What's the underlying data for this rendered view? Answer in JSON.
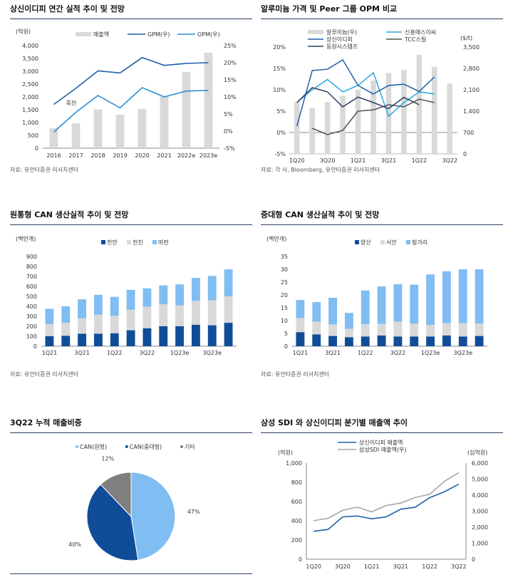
{
  "chart_data": [
    {
      "type": "bar",
      "title": "상신이디피 연간 실적 추이 및 전망",
      "source": "자료: 유안타증권 리서치센터",
      "left_unit": "(억원)",
      "categories": [
        "2016",
        "2017",
        "2018",
        "2019",
        "2020",
        "2021",
        "2022e",
        "2023e"
      ],
      "left_ticks": [
        "0",
        "500",
        "1,000",
        "1,500",
        "2,000",
        "2,500",
        "3,000",
        "3,500",
        "4,000"
      ],
      "right_ticks": [
        "25%",
        "20%",
        "15%",
        "10%",
        "5%",
        "0%",
        "-5%"
      ],
      "ylim_left": [
        0,
        4000
      ],
      "ylim_right": [
        -5,
        25
      ],
      "series": [
        {
          "name": "매출액",
          "kind": "bar",
          "axis": "left",
          "color": "#d9d9d9",
          "values": [
            780,
            970,
            1510,
            1310,
            1530,
            2020,
            2970,
            3720
          ]
        },
        {
          "name": "GPM(우)",
          "kind": "line",
          "axis": "right",
          "color": "#1f5fa8",
          "values": [
            7.8,
            12.5,
            17.6,
            17.0,
            21.5,
            19.2,
            19.8,
            20.0
          ]
        },
        {
          "name": "OPM(우)",
          "kind": "line",
          "axis": "right",
          "color": "#2b8fd6",
          "values": [
            -0.3,
            5.5,
            10.4,
            6.8,
            12.7,
            10.0,
            11.7,
            11.9
          ]
        }
      ],
      "annotation": "흑전"
    },
    {
      "type": "bar",
      "title": "알루미늄 가격 및 Peer 그룹 OPM 비교",
      "source": "자료: 각 사, Bloomberg, 유안타증권 리서치센터",
      "right_unit": "($/t)",
      "categories": [
        "1Q20",
        "2Q20",
        "3Q20",
        "4Q20",
        "1Q21",
        "2Q21",
        "3Q21",
        "4Q21",
        "1Q22",
        "2Q22",
        "3Q22"
      ],
      "x_tick_labels": [
        "1Q20",
        "3Q20",
        "1Q21",
        "3Q21",
        "1Q22",
        "3Q22"
      ],
      "left_ticks": [
        "20%",
        "15%",
        "10%",
        "5%",
        "0%",
        "-5%"
      ],
      "right_ticks": [
        "3,500",
        "2,800",
        "2,100",
        "1,400",
        "700",
        "0"
      ],
      "ylim_left": [
        -5,
        20
      ],
      "ylim_right": [
        0,
        3500
      ],
      "series": [
        {
          "name": "알루미늄(우)",
          "kind": "bar",
          "axis": "right",
          "color": "#d9d9d9",
          "values": [
            1700,
            1500,
            1700,
            1900,
            2100,
            2400,
            2650,
            2750,
            3250,
            2850,
            2300
          ]
        },
        {
          "name": "신흥에스이씨",
          "kind": "line",
          "axis": "left",
          "color": "#2aa9df",
          "values": [
            7,
            10,
            12.4,
            9.5,
            11,
            14,
            3.8,
            7,
            9.5,
            9,
            null
          ]
        },
        {
          "name": "상신이디피",
          "kind": "line",
          "axis": "left",
          "color": "#1f5fa8",
          "values": [
            1.5,
            14.5,
            14.8,
            17,
            11,
            9,
            11,
            11.3,
            9.6,
            13,
            null
          ]
        },
        {
          "name": "TCC스틸",
          "kind": "line",
          "axis": "left",
          "color": "#555555",
          "values": [
            null,
            1,
            -0.5,
            0.5,
            5,
            5.3,
            6.5,
            6,
            7.8,
            7,
            null
          ]
        },
        {
          "name": "동원시스템즈",
          "kind": "line",
          "axis": "left",
          "color": "#2b3f66",
          "values": [
            7,
            10.5,
            9.5,
            6,
            8.3,
            7,
            5.6,
            8.2,
            6.5,
            null,
            null
          ]
        }
      ]
    },
    {
      "type": "bar",
      "title": "원통형 CAN 생산실적 추이 및 전망",
      "source": "자료: 유안타증권 리서치센터",
      "left_unit": "(백만개)",
      "categories": [
        "1Q21",
        "2Q21",
        "3Q21",
        "4Q21",
        "1Q22",
        "2Q22",
        "3Q22",
        "4Q22",
        "1Q23e",
        "2Q23e",
        "3Q23e",
        "4Q23e"
      ],
      "x_tick_labels": [
        "1Q21",
        "3Q21",
        "1Q22",
        "3Q22",
        "1Q23e",
        "3Q23e"
      ],
      "left_ticks": [
        "0",
        "100",
        "200",
        "300",
        "400",
        "500",
        "600",
        "700",
        "800",
        "900"
      ],
      "ylim": [
        0,
        900
      ],
      "series": [
        {
          "name": "천안",
          "color": "#0f4d99",
          "values": [
            100,
            105,
            125,
            125,
            130,
            160,
            180,
            200,
            200,
            215,
            210,
            235
          ]
        },
        {
          "name": "천진",
          "color": "#d9d9d9",
          "values": [
            120,
            130,
            155,
            190,
            175,
            205,
            215,
            220,
            210,
            240,
            250,
            265
          ]
        },
        {
          "name": "마련",
          "color": "#80bdf2",
          "values": [
            155,
            165,
            190,
            200,
            190,
            200,
            185,
            190,
            210,
            230,
            245,
            270
          ]
        }
      ]
    },
    {
      "type": "bar",
      "title": "중대형 CAN 생산실적 추이 및 전망",
      "source": "자료: 유안타증권 리서치센터",
      "left_unit": "(백만개)",
      "categories": [
        "1Q21",
        "2Q21",
        "3Q21",
        "4Q21",
        "1Q22",
        "2Q22",
        "3Q22",
        "4Q22",
        "1Q23e",
        "2Q23e",
        "3Q23e",
        "4Q23e"
      ],
      "x_tick_labels": [
        "1Q21",
        "3Q21",
        "1Q22",
        "3Q22",
        "1Q23e",
        "3Q23e"
      ],
      "left_ticks": [
        "0",
        "5",
        "10",
        "15",
        "20",
        "25",
        "30",
        "35"
      ],
      "ylim": [
        0,
        35
      ],
      "series": [
        {
          "name": "양산",
          "color": "#0f4d99",
          "values": [
            5.5,
            4.6,
            4.0,
            3.5,
            3.8,
            4.2,
            3.8,
            3.8,
            3.8,
            4.2,
            3.8,
            4.0
          ]
        },
        {
          "name": "서안",
          "color": "#d9d9d9",
          "values": [
            5.5,
            5.0,
            4.5,
            3.3,
            4.8,
            4.5,
            5.8,
            5.0,
            4.5,
            4.8,
            5.2,
            4.8
          ]
        },
        {
          "name": "헝가리",
          "color": "#80bdf2",
          "values": [
            7,
            7.6,
            10.4,
            6.2,
            13.1,
            14.6,
            14.6,
            15.2,
            19.7,
            20.2,
            21.0,
            21.2
          ]
        }
      ]
    },
    {
      "type": "pie",
      "title": "3Q22 누적 매출비중",
      "labels": [
        "CAN(원형)",
        "CAN(중대형)",
        "기타"
      ],
      "values": [
        47,
        40,
        12
      ],
      "value_labels": [
        "47%",
        "40%",
        "12%"
      ],
      "colors": [
        "#80bdf2",
        "#0f4d99",
        "#7f7f7f"
      ]
    },
    {
      "type": "line",
      "title": "삼성 SDI 와 상신이디피 분기별 매출액 추이",
      "left_unit": "(억원)",
      "right_unit": "(십억원)",
      "categories": [
        "1Q20",
        "2Q20",
        "3Q20",
        "4Q20",
        "1Q21",
        "2Q21",
        "3Q21",
        "4Q21",
        "1Q22",
        "2Q22",
        "3Q22"
      ],
      "x_tick_labels": [
        "1Q20",
        "3Q20",
        "1Q21",
        "3Q21",
        "1Q22",
        "3Q22"
      ],
      "left_ticks": [
        "0",
        "200",
        "400",
        "600",
        "800",
        "1,000"
      ],
      "right_ticks": [
        "0",
        "1,000",
        "2,000",
        "3,000",
        "4,000",
        "5,000",
        "6,000"
      ],
      "ylim_left": [
        0,
        1000
      ],
      "ylim_right": [
        0,
        6000
      ],
      "series": [
        {
          "name": "상신이디피 매출액",
          "axis": "left",
          "color": "#1f5fa8",
          "values": [
            290,
            310,
            440,
            450,
            420,
            440,
            520,
            540,
            640,
            700,
            780
          ]
        },
        {
          "name": "삼성SDI 매출액(우)",
          "axis": "right",
          "color": "#a6a6a6",
          "values": [
            2400,
            2550,
            3050,
            3250,
            2950,
            3350,
            3500,
            3850,
            4050,
            4850,
            5400
          ]
        }
      ]
    }
  ]
}
